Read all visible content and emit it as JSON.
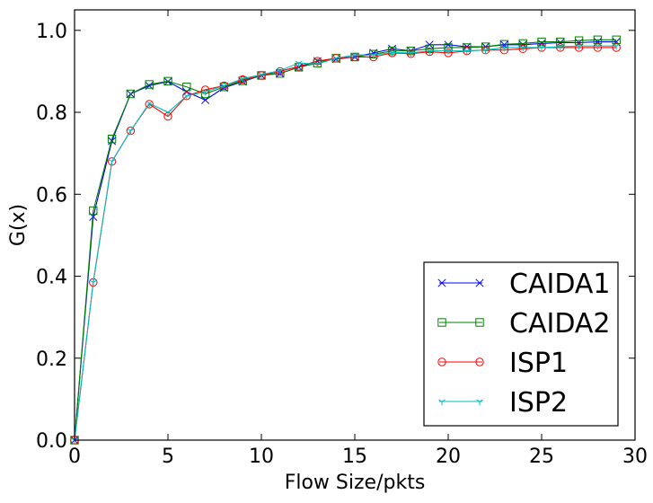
{
  "chart_data": {
    "type": "line",
    "title": "",
    "xlabel": "Flow Size/pkts",
    "ylabel": "G(x)",
    "xlim": [
      0,
      30
    ],
    "ylim": [
      0,
      1.05
    ],
    "x_ticks": [
      "0",
      "5",
      "10",
      "15",
      "20",
      "25",
      "30"
    ],
    "y_ticks": [
      "0.0",
      "0.2",
      "0.4",
      "0.6",
      "0.8",
      "1.0"
    ],
    "grid": false,
    "legend_position": "bottom-right",
    "x": [
      0,
      1,
      2,
      3,
      4,
      5,
      6,
      7,
      8,
      9,
      10,
      11,
      12,
      13,
      14,
      15,
      16,
      17,
      18,
      19,
      20,
      21,
      22,
      23,
      24,
      25,
      26,
      27,
      28,
      29
    ],
    "series": [
      {
        "name": "CAIDA1",
        "color": "#0000ff",
        "marker": "x",
        "values": [
          0.0,
          0.545,
          0.73,
          0.845,
          0.865,
          0.875,
          0.85,
          0.83,
          0.86,
          0.875,
          0.89,
          0.895,
          0.91,
          0.925,
          0.93,
          0.935,
          0.945,
          0.955,
          0.95,
          0.965,
          0.965,
          0.96,
          0.96,
          0.965,
          0.965,
          0.968,
          0.97,
          0.97,
          0.972,
          0.972
        ]
      },
      {
        "name": "CAIDA2",
        "color": "#008000",
        "marker": "square",
        "values": [
          0.0,
          0.56,
          0.735,
          0.845,
          0.868,
          0.876,
          0.862,
          0.845,
          0.862,
          0.877,
          0.89,
          0.895,
          0.91,
          0.92,
          0.932,
          0.935,
          0.942,
          0.95,
          0.95,
          0.955,
          0.958,
          0.958,
          0.96,
          0.966,
          0.968,
          0.972,
          0.972,
          0.975,
          0.977,
          0.977
        ]
      },
      {
        "name": "ISP1",
        "color": "#ff0000",
        "marker": "circle",
        "values": [
          0.0,
          0.385,
          0.68,
          0.755,
          0.82,
          0.79,
          0.84,
          0.855,
          0.865,
          0.88,
          0.89,
          0.9,
          0.912,
          0.925,
          0.932,
          0.935,
          0.935,
          0.945,
          0.943,
          0.948,
          0.945,
          0.95,
          0.952,
          0.952,
          0.955,
          0.958,
          0.958,
          0.958,
          0.958,
          0.958
        ]
      },
      {
        "name": "ISP2",
        "color": "#00bfbf",
        "marker": "tri_down",
        "values": [
          0.0,
          0.385,
          0.68,
          0.755,
          0.822,
          0.8,
          0.84,
          0.85,
          0.865,
          0.882,
          0.892,
          0.902,
          0.92,
          0.918,
          0.932,
          0.94,
          0.94,
          0.946,
          0.945,
          0.95,
          0.95,
          0.95,
          0.952,
          0.958,
          0.958,
          0.958,
          0.96,
          0.962,
          0.962,
          0.962
        ]
      }
    ]
  }
}
